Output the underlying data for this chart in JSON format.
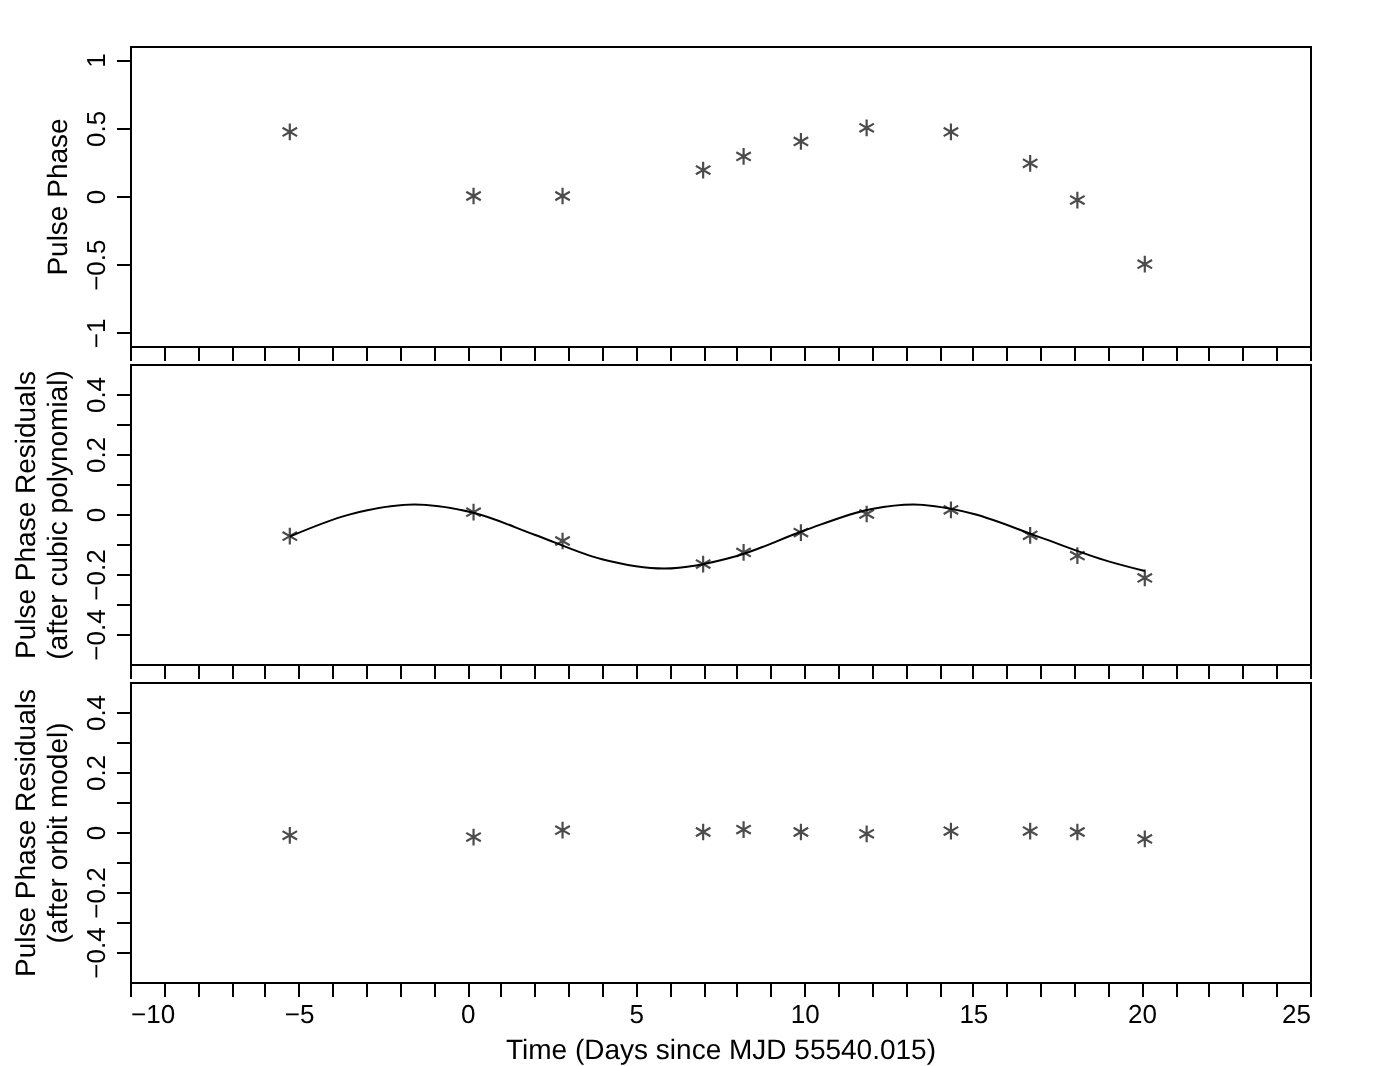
{
  "chart_data": [
    {
      "type": "scatter",
      "ylabel": "Pulse Phase",
      "marker": "cross",
      "grid": false,
      "tick_labels": "y",
      "x": [
        -5.26,
        0.19,
        2.83,
        7.0,
        8.2,
        9.9,
        11.85,
        14.35,
        16.7,
        18.1,
        20.1
      ],
      "series": [
        {
          "color": "#000000",
          "values": [
            0.47,
            0.0,
            0.0,
            0.19,
            0.29,
            0.4,
            0.5,
            0.47,
            0.24,
            -0.03,
            -0.5
          ]
        }
      ],
      "xlim": [
        -10,
        25
      ],
      "xticks": [
        -10,
        {
          "value": -9,
          "label": null
        },
        {
          "value": -8,
          "label": null
        },
        {
          "value": -7,
          "label": null
        },
        {
          "value": -6,
          "label": null
        },
        -5,
        {
          "value": -4,
          "label": null
        },
        {
          "value": -3,
          "label": null
        },
        {
          "value": -2,
          "label": null
        },
        {
          "value": -1,
          "label": null
        },
        0,
        {
          "value": 1,
          "label": null
        },
        {
          "value": 2,
          "label": null
        },
        {
          "value": 3,
          "label": null
        },
        {
          "value": 4,
          "label": null
        },
        5,
        {
          "value": 6,
          "label": null
        },
        {
          "value": 7,
          "label": null
        },
        {
          "value": 8,
          "label": null
        },
        {
          "value": 9,
          "label": null
        },
        10,
        {
          "value": 11,
          "label": null
        },
        {
          "value": 12,
          "label": null
        },
        {
          "value": 13,
          "label": null
        },
        {
          "value": 14,
          "label": null
        },
        15,
        {
          "value": 16,
          "label": null
        },
        {
          "value": 17,
          "label": null
        },
        {
          "value": 18,
          "label": null
        },
        {
          "value": 19,
          "label": null
        },
        20,
        {
          "value": 21,
          "label": null
        },
        {
          "value": 22,
          "label": null
        },
        {
          "value": 23,
          "label": null
        },
        {
          "value": 24,
          "label": null
        },
        25
      ],
      "ylim": [
        -1.1,
        1.1
      ],
      "yticks": [
        {
          "value": -1,
          "label": "−1"
        },
        {
          "value": -0.5,
          "label": "−0.5"
        },
        0,
        0.5,
        1
      ]
    },
    {
      "type": "scatter",
      "ylabel": "Pulse Phase Residuals\n(after cubic polynomial)",
      "marker": "cross",
      "grid": false,
      "tick_labels": "y",
      "x": [
        -5.26,
        0.19,
        2.83,
        7.0,
        8.2,
        9.9,
        11.85,
        14.35,
        16.7,
        18.1,
        20.1
      ],
      "series": [
        {
          "color": "#000000",
          "values": [
            -0.074,
            0.006,
            -0.09,
            -0.167,
            -0.128,
            -0.062,
            0.0,
            0.014,
            -0.071,
            -0.139,
            -0.213
          ]
        },
        {
          "type": "line",
          "color": "#000000",
          "marker": "none",
          "line_style": "solid",
          "x": [
            -5.26,
            -3.5,
            -1.56,
            0.19,
            2.0,
            4.0,
            5.84,
            8.0,
            10.0,
            12.0,
            13.24,
            15.0,
            17.0,
            19.0,
            20.1
          ],
          "values": [
            -0.075,
            -0.002,
            0.032,
            0.004,
            -0.069,
            -0.151,
            -0.182,
            -0.14,
            -0.055,
            0.017,
            0.032,
            0.001,
            -0.078,
            -0.157,
            -0.19
          ]
        }
      ],
      "xlim": [
        -10,
        25
      ],
      "xticks": [
        -10,
        {
          "value": -9,
          "label": null
        },
        {
          "value": -8,
          "label": null
        },
        {
          "value": -7,
          "label": null
        },
        {
          "value": -6,
          "label": null
        },
        -5,
        {
          "value": -4,
          "label": null
        },
        {
          "value": -3,
          "label": null
        },
        {
          "value": -2,
          "label": null
        },
        {
          "value": -1,
          "label": null
        },
        0,
        {
          "value": 1,
          "label": null
        },
        {
          "value": 2,
          "label": null
        },
        {
          "value": 3,
          "label": null
        },
        {
          "value": 4,
          "label": null
        },
        5,
        {
          "value": 6,
          "label": null
        },
        {
          "value": 7,
          "label": null
        },
        {
          "value": 8,
          "label": null
        },
        {
          "value": 9,
          "label": null
        },
        10,
        {
          "value": 11,
          "label": null
        },
        {
          "value": 12,
          "label": null
        },
        {
          "value": 13,
          "label": null
        },
        {
          "value": 14,
          "label": null
        },
        15,
        {
          "value": 16,
          "label": null
        },
        {
          "value": 17,
          "label": null
        },
        {
          "value": 18,
          "label": null
        },
        {
          "value": 19,
          "label": null
        },
        20,
        {
          "value": 21,
          "label": null
        },
        {
          "value": 22,
          "label": null
        },
        {
          "value": 23,
          "label": null
        },
        {
          "value": 24,
          "label": null
        },
        25
      ],
      "ylim": [
        -0.5,
        0.5
      ],
      "yticks": [
        {
          "value": -0.4,
          "label": "−0.4"
        },
        {
          "value": -0.3,
          "label": null
        },
        {
          "value": -0.2,
          "label": "−0.2"
        },
        {
          "value": -0.1,
          "label": null
        },
        0,
        {
          "value": 0.1,
          "label": null
        },
        0.2,
        {
          "value": 0.3,
          "label": null
        },
        0.4
      ]
    },
    {
      "type": "scatter",
      "ylabel": "Pulse Phase Residuals\n(after orbit model)",
      "xlabel": "Time (Days since MJD 55540.015)",
      "marker": "cross",
      "grid": false,
      "x": [
        -5.26,
        0.19,
        2.83,
        7.0,
        8.2,
        9.9,
        11.85,
        14.35,
        16.7,
        18.1,
        20.1
      ],
      "series": [
        {
          "color": "#000000",
          "values": [
            -0.011,
            -0.017,
            0.006,
            0.0,
            0.008,
            0.0,
            -0.006,
            0.003,
            0.003,
            0.0,
            -0.023
          ]
        }
      ],
      "xlim": [
        -10,
        25
      ],
      "xticks": [
        {
          "value": -10,
          "label": "−10"
        },
        {
          "value": -9,
          "label": null
        },
        {
          "value": -8,
          "label": null
        },
        {
          "value": -7,
          "label": null
        },
        {
          "value": -6,
          "label": null
        },
        {
          "value": -5,
          "label": "−5"
        },
        {
          "value": -4,
          "label": null
        },
        {
          "value": -3,
          "label": null
        },
        {
          "value": -2,
          "label": null
        },
        {
          "value": -1,
          "label": null
        },
        0,
        {
          "value": 1,
          "label": null
        },
        {
          "value": 2,
          "label": null
        },
        {
          "value": 3,
          "label": null
        },
        {
          "value": 4,
          "label": null
        },
        5,
        {
          "value": 6,
          "label": null
        },
        {
          "value": 7,
          "label": null
        },
        {
          "value": 8,
          "label": null
        },
        {
          "value": 9,
          "label": null
        },
        10,
        {
          "value": 11,
          "label": null
        },
        {
          "value": 12,
          "label": null
        },
        {
          "value": 13,
          "label": null
        },
        {
          "value": 14,
          "label": null
        },
        15,
        {
          "value": 16,
          "label": null
        },
        {
          "value": 17,
          "label": null
        },
        {
          "value": 18,
          "label": null
        },
        {
          "value": 19,
          "label": null
        },
        20,
        {
          "value": 21,
          "label": null
        },
        {
          "value": 22,
          "label": null
        },
        {
          "value": 23,
          "label": null
        },
        {
          "value": 24,
          "label": null
        },
        25
      ],
      "ylim": [
        -0.5,
        0.5
      ],
      "yticks": [
        {
          "value": -0.4,
          "label": "−0.4"
        },
        {
          "value": -0.3,
          "label": null
        },
        {
          "value": -0.2,
          "label": "−0.2"
        },
        {
          "value": -0.1,
          "label": null
        },
        0,
        {
          "value": 0.1,
          "label": null
        },
        0.2,
        {
          "value": 0.3,
          "label": null
        },
        0.4
      ]
    }
  ]
}
